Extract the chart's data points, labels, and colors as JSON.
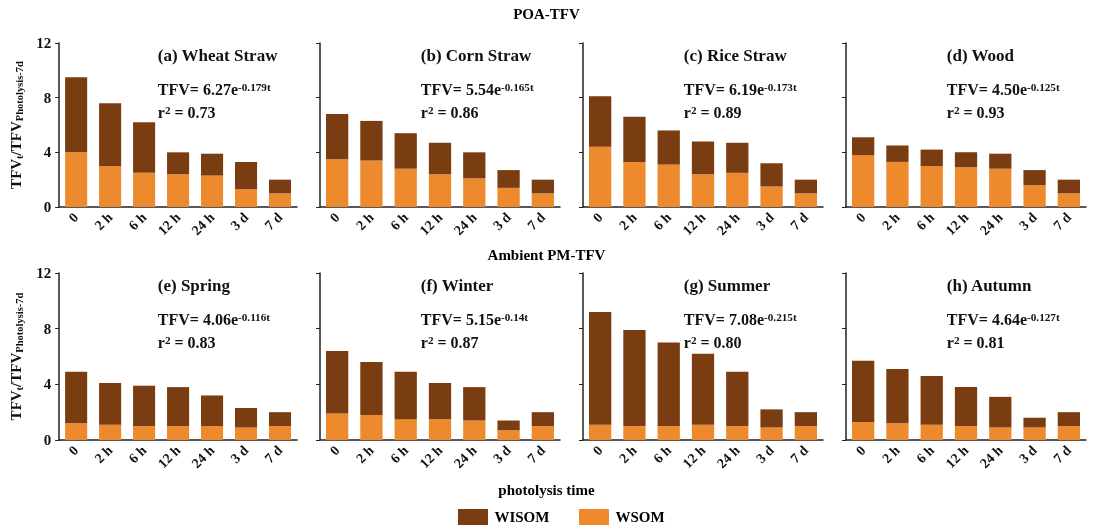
{
  "chart_data": [
    {
      "type": "bar",
      "title": "(a) Wheat Straw",
      "ylabel": "TFV$_{t}$/TFV$_{Photolysis-7d}$",
      "annotations": [
        "POA-TFV",
        "TFV= 6.27e$^{-0.179t}$",
        "r$^{2}$ = 0.73"
      ],
      "categories": [
        "0",
        "2 h",
        "6 h",
        "12 h",
        "24 h",
        "3 d",
        "7 d"
      ],
      "stacked": true,
      "ylim": [
        0,
        12
      ],
      "yticks": [
        0,
        4,
        8,
        12
      ],
      "legend": "bottom",
      "series": [
        {
          "name": "WSOM",
          "color": "#ed8a2e",
          "values": [
            4.0,
            3.0,
            2.5,
            2.4,
            2.3,
            1.3,
            1.0
          ]
        },
        {
          "name": "WISOM",
          "color": "#7a3d12",
          "values": [
            5.5,
            4.6,
            3.7,
            1.6,
            1.6,
            2.0,
            1.0
          ]
        }
      ]
    },
    {
      "type": "bar",
      "title": "(b) Corn Straw",
      "annotations": [
        "TFV= 5.54e$^{-0.165t}$",
        "r$^{2}$ = 0.86"
      ],
      "categories": [
        "0",
        "2 h",
        "6 h",
        "12 h",
        "24 h",
        "3 d",
        "7 d"
      ],
      "stacked": true,
      "ylim": [
        0,
        12
      ],
      "yticks": [
        0,
        4,
        8,
        12
      ],
      "tick_labels": "x",
      "series": [
        {
          "color": "#ed8a2e",
          "values": [
            3.5,
            3.4,
            2.8,
            2.4,
            2.1,
            1.4,
            1.0
          ]
        },
        {
          "color": "#7a3d12",
          "values": [
            3.3,
            2.9,
            2.6,
            2.3,
            1.9,
            1.3,
            1.0
          ]
        }
      ]
    },
    {
      "type": "bar",
      "title": "(c) Rice Straw",
      "annotations": [
        "TFV= 6.19e$^{-0.173t}$",
        "r$^{2}$ = 0.89"
      ],
      "categories": [
        "0",
        "2 h",
        "6 h",
        "12 h",
        "24 h",
        "3 d",
        "7 d"
      ],
      "stacked": true,
      "ylim": [
        0,
        12
      ],
      "yticks": [
        0,
        4,
        8,
        12
      ],
      "tick_labels": "x",
      "series": [
        {
          "color": "#ed8a2e",
          "values": [
            4.4,
            3.3,
            3.1,
            2.4,
            2.5,
            1.5,
            1.0
          ]
        },
        {
          "color": "#7a3d12",
          "values": [
            3.7,
            3.3,
            2.5,
            2.4,
            2.2,
            1.7,
            1.0
          ]
        }
      ]
    },
    {
      "type": "bar",
      "title": "(d) Wood",
      "annotations": [
        "TFV= 4.50e$^{-0.125t}$",
        "r$^{2}$ = 0.93"
      ],
      "categories": [
        "0",
        "2 h",
        "6 h",
        "12 h",
        "24 h",
        "3 d",
        "7 d"
      ],
      "stacked": true,
      "ylim": [
        0,
        12
      ],
      "yticks": [
        0,
        4,
        8,
        12
      ],
      "tick_labels": "x",
      "series": [
        {
          "color": "#ed8a2e",
          "values": [
            3.8,
            3.3,
            3.0,
            2.9,
            2.8,
            1.6,
            1.0
          ]
        },
        {
          "color": "#7a3d12",
          "values": [
            1.3,
            1.2,
            1.2,
            1.1,
            1.1,
            1.1,
            1.0
          ]
        }
      ]
    },
    {
      "type": "bar",
      "title": "(e) Spring",
      "ylabel": "TFV$_{t}$/TFV$_{Photolysis-7d}$",
      "annotations": [
        "Ambient PM-TFV",
        "TFV= 4.06e$^{-0.116t}$",
        "r$^{2}$ = 0.83"
      ],
      "categories": [
        "0",
        "2 h",
        "6 h",
        "12 h",
        "24 h",
        "3 d",
        "7 d"
      ],
      "stacked": true,
      "ylim": [
        0,
        12
      ],
      "yticks": [
        0,
        4,
        8,
        12
      ],
      "series": [
        {
          "color": "#ed8a2e",
          "values": [
            1.2,
            1.1,
            1.0,
            1.0,
            1.0,
            0.9,
            1.0
          ]
        },
        {
          "color": "#7a3d12",
          "values": [
            3.7,
            3.0,
            2.9,
            2.8,
            2.2,
            1.4,
            1.0
          ]
        }
      ]
    },
    {
      "type": "bar",
      "title": "(f) Winter",
      "xlabel": "photolysis time",
      "annotations": [
        "TFV= 5.15e$^{-0.14t}$",
        "r$^{2}$ = 0.87"
      ],
      "categories": [
        "0",
        "2 h",
        "6 h",
        "12 h",
        "24 h",
        "3 d",
        "7 d"
      ],
      "stacked": true,
      "ylim": [
        0,
        12
      ],
      "yticks": [
        0,
        4,
        8,
        12
      ],
      "tick_labels": "x",
      "series": [
        {
          "color": "#ed8a2e",
          "values": [
            1.9,
            1.8,
            1.5,
            1.5,
            1.4,
            0.7,
            1.0
          ]
        },
        {
          "color": "#7a3d12",
          "values": [
            4.5,
            3.8,
            3.4,
            2.6,
            2.4,
            0.7,
            1.0
          ]
        }
      ]
    },
    {
      "type": "bar",
      "title": "(g) Summer",
      "annotations": [
        "TFV= 7.08e$^{-0.215t}$",
        "r$^{2}$ = 0.80"
      ],
      "categories": [
        "0",
        "2 h",
        "6 h",
        "12 h",
        "24 h",
        "3 d",
        "7 d"
      ],
      "stacked": true,
      "ylim": [
        0,
        12
      ],
      "yticks": [
        0,
        4,
        8,
        12
      ],
      "tick_labels": "x",
      "series": [
        {
          "color": "#ed8a2e",
          "values": [
            1.1,
            1.0,
            1.0,
            1.1,
            1.0,
            0.9,
            1.0
          ]
        },
        {
          "color": "#7a3d12",
          "values": [
            8.1,
            6.9,
            6.0,
            5.1,
            3.9,
            1.3,
            1.0
          ]
        }
      ]
    },
    {
      "type": "bar",
      "title": "(h) Autumn",
      "annotations": [
        "TFV= 4.64e$^{-0.127t}$",
        "r$^{2}$ = 0.81"
      ],
      "categories": [
        "0",
        "2 h",
        "6 h",
        "12 h",
        "24 h",
        "3 d",
        "7 d"
      ],
      "stacked": true,
      "ylim": [
        0,
        12
      ],
      "yticks": [
        0,
        4,
        8,
        12
      ],
      "tick_labels": "x",
      "series": [
        {
          "color": "#ed8a2e",
          "values": [
            1.3,
            1.2,
            1.1,
            1.0,
            0.9,
            0.9,
            1.0
          ]
        },
        {
          "color": "#7a3d12",
          "values": [
            4.4,
            3.9,
            3.5,
            2.8,
            2.2,
            0.7,
            1.0
          ]
        }
      ]
    }
  ]
}
